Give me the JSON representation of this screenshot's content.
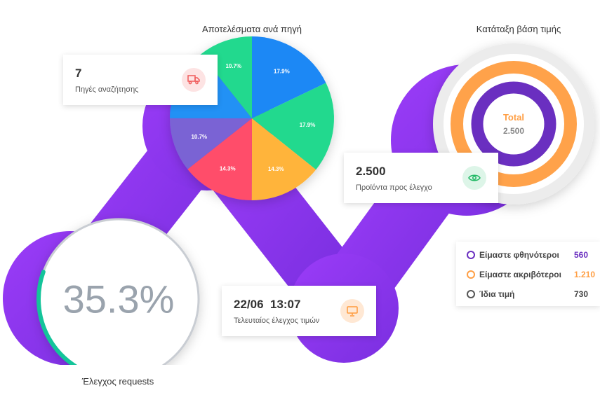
{
  "pie_section": {
    "title": "Αποτελέσματα ανά πηγή",
    "slices": [
      {
        "value": 17.9,
        "label": "17.9%",
        "color": "#1e88f5"
      },
      {
        "value": 17.9,
        "label": "17.9%",
        "color": "#22d98e"
      },
      {
        "value": 14.3,
        "label": "14.3%",
        "color": "#ffb43a"
      },
      {
        "value": 14.3,
        "label": "14.3%",
        "color": "#ff4d6a"
      },
      {
        "value": 10.7,
        "label": "10.7%",
        "color": "#7a64d4"
      },
      {
        "value": 14.3,
        "label": "14.3%",
        "color": "#2491f5"
      },
      {
        "value": 10.7,
        "label": "10.7%",
        "color": "#22d98e"
      }
    ]
  },
  "donut_section": {
    "title": "Κατάταξη βάση τιμής",
    "center_label": "Total",
    "center_value": "2.500"
  },
  "cards": {
    "sources": {
      "value": "7",
      "label": "Πηγές αναζήτησης",
      "icon": "truck-icon"
    },
    "products": {
      "value": "2.500",
      "label": "Προϊόντα προς έλεγχο",
      "icon": "eye-icon"
    },
    "last_check": {
      "value": "22/06  13:07",
      "label": "Τελευταίος έλεγχος τιμών",
      "icon": "monitor-icon"
    }
  },
  "legend": [
    {
      "label": "Είμαστε φθηνότεροι",
      "value": "560",
      "color": "#6a2fc0"
    },
    {
      "label": "Είμαστε ακριβότεροι",
      "value": "1.210",
      "color": "#ff9f45"
    },
    {
      "label": "Ίδια τιμή",
      "value": "730",
      "color": "#555555"
    }
  ],
  "requests": {
    "value": "35.3%",
    "progress": 0.353,
    "label": "Έλεγχος requests"
  }
}
